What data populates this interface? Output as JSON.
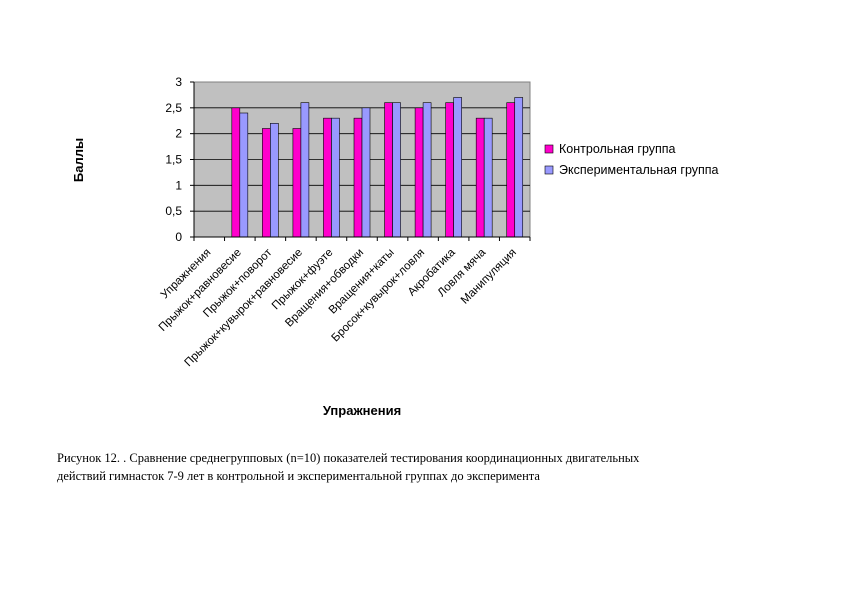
{
  "chart_data": {
    "type": "bar",
    "title": "",
    "xlabel": "Упражнения",
    "ylabel": "Баллы",
    "ylim": [
      0,
      3
    ],
    "yticks": [
      "0",
      "0,5",
      "1",
      "1,5",
      "2",
      "2,5",
      "3"
    ],
    "grid": true,
    "legend_position": "right",
    "categories": [
      "Упражнения",
      "Прыжок+равновесие",
      "Прыжок+поворот",
      "Прыжок+кувырок+равновесие",
      "Прыжок+фуэте",
      "Вращения+обводки",
      "Вращения+каты",
      "Бросок+кувырок+ловля",
      "Акробатика",
      "Ловля мяча",
      "Манипуляция"
    ],
    "series": [
      {
        "name": "Контрольная группа",
        "color": "#ff00cc",
        "values": [
          0,
          2.5,
          2.1,
          2.1,
          2.3,
          2.3,
          2.6,
          2.5,
          2.6,
          2.3,
          2.6
        ]
      },
      {
        "name": "Экспериментальная группа",
        "color": "#9999ff",
        "values": [
          0,
          2.4,
          2.2,
          2.6,
          2.3,
          2.5,
          2.6,
          2.6,
          2.7,
          2.3,
          2.7
        ]
      }
    ],
    "plot_background": "#c0c0c0"
  },
  "caption": {
    "line1": "Рисунок 12. . Сравнение среднегрупповых (n=10) показателей тестирования координационных двигательных",
    "line2": "действий гимнасток 7-9 лет в контрольной и экспериментальной группах до эксперимента"
  }
}
